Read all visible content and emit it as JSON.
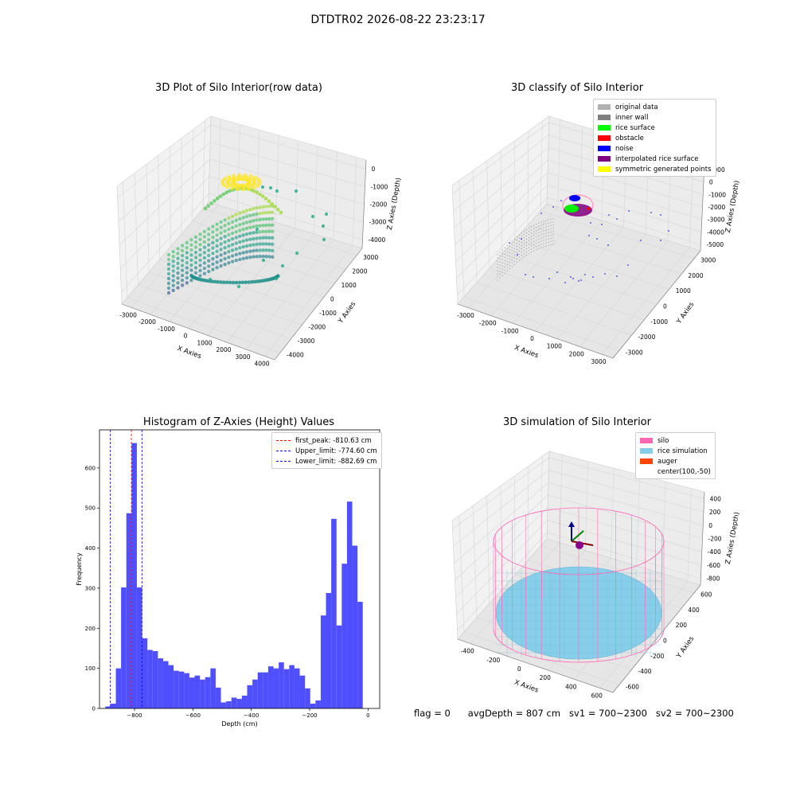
{
  "figure_title": "DTDTR02 2026-08-22 23:23:17",
  "status": {
    "flag": "flag = 0",
    "avg_depth": "avgDepth = 807 cm",
    "sv1": "sv1 = 700~2300",
    "sv2": "sv2 = 700~2300"
  },
  "colors": {
    "hist_bar": "#4b4bff",
    "peak_line": "#ff0000",
    "limit_line": "#0000ff",
    "silo": "#ff69b4",
    "rice": "#87ceeb",
    "auger": "#ff4500"
  },
  "chart_data": [
    {
      "type": "scatter",
      "projection": "3d",
      "title": "3D Plot of Silo Interior(row data)",
      "xlabel": "X Axies",
      "ylabel": "Y Axies",
      "zlabel": "Z Axies (Depth)",
      "x_ticks": [
        "-3000",
        "-2000",
        "-1000",
        "0",
        "1000",
        "2000",
        "3000",
        "4000"
      ],
      "y_ticks": [
        "3000",
        "2000",
        "1000",
        "0",
        "-1000",
        "-2000",
        "-3000",
        "-4000"
      ],
      "z_ticks": [
        "0",
        "-1000",
        "-2000",
        "-3000",
        "-4000"
      ],
      "colormap": "viridis"
    },
    {
      "type": "scatter",
      "projection": "3d",
      "title": "3D classify of Silo Interior",
      "xlabel": "X Axies",
      "ylabel": "Y Axies",
      "zlabel": "Z Axies (Depth)",
      "x_ticks": [
        "-3000",
        "-2000",
        "-1000",
        "0",
        "1000",
        "2000",
        "3000"
      ],
      "y_ticks": [
        "3000",
        "2000",
        "1000",
        "0",
        "-1000",
        "-2000",
        "-3000"
      ],
      "z_ticks": [
        "1000",
        "0",
        "-1000",
        "-2000",
        "-3000",
        "-4000",
        "-5000"
      ],
      "legend": [
        {
          "label": "original data",
          "color": "#b0b0b0"
        },
        {
          "label": "inner wall",
          "color": "#808080"
        },
        {
          "label": "rice surface",
          "color": "#00ff00"
        },
        {
          "label": "obstacle",
          "color": "#ff0000"
        },
        {
          "label": "noise",
          "color": "#0000ff"
        },
        {
          "label": "interpolated rice surface",
          "color": "#800080"
        },
        {
          "label": "symmetric generated points",
          "color": "#ffff00"
        }
      ]
    },
    {
      "type": "bar",
      "title": "Histogram of Z-Axies (Height) Values",
      "xlabel": "Depth (cm)",
      "ylabel": "Frequency",
      "xlim": [
        -920,
        40
      ],
      "ylim": [
        0,
        695
      ],
      "x_ticks": [
        -800,
        -600,
        -400,
        -200,
        0
      ],
      "y_ticks": [
        0,
        100,
        200,
        300,
        400,
        500,
        600
      ],
      "bin_width": 18,
      "bin_start": -900,
      "values": [
        5,
        12,
        100,
        302,
        487,
        662,
        302,
        175,
        146,
        143,
        125,
        118,
        108,
        94,
        92,
        88,
        77,
        82,
        72,
        78,
        100,
        52,
        15,
        18,
        27,
        24,
        32,
        58,
        72,
        90,
        90,
        105,
        100,
        115,
        98,
        108,
        100,
        82,
        50,
        12,
        20,
        232,
        288,
        473,
        207,
        361,
        516,
        406,
        266
      ],
      "vlines": [
        {
          "name": "first_peak: -810.63 cm",
          "x": -810.63,
          "color": "#ff0000"
        },
        {
          "name": "Upper_limit: -774.60 cm",
          "x": -774.6,
          "color": "#0000ff"
        },
        {
          "name": "Lower_limit: -882.69 cm",
          "x": -882.69,
          "color": "#0000ff"
        }
      ]
    },
    {
      "type": "surface",
      "projection": "3d",
      "title": "3D simulation of Silo Interior",
      "xlabel": "X Axies",
      "ylabel": "Y Axies",
      "zlabel": "Z Axies (Depth)",
      "x_ticks": [
        "-400",
        "-200",
        "0",
        "200",
        "400",
        "600"
      ],
      "y_ticks": [
        "600",
        "400",
        "200",
        "0",
        "-200",
        "-400",
        "-600"
      ],
      "z_ticks": [
        "400",
        "200",
        "0",
        "-200",
        "-400",
        "-600",
        "-800"
      ],
      "legend": [
        {
          "label": "silo",
          "color": "#ff69b4"
        },
        {
          "label": "rice simulation",
          "color": "#87ceeb"
        },
        {
          "label": "auger",
          "color": "#ff4500"
        },
        {
          "label": "center(100,-50)",
          "color": ""
        }
      ]
    }
  ]
}
